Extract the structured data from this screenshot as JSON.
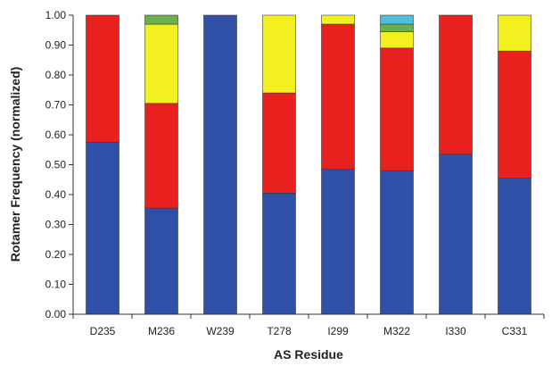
{
  "chart_data": {
    "type": "bar",
    "stacked": true,
    "title": "",
    "xlabel": "AS Residue",
    "ylabel": "Rotamer Frequency (normalized)",
    "ylim": [
      0,
      1
    ],
    "ytick_step": 0.1,
    "grid": false,
    "legend": "none",
    "categories": [
      "D235",
      "M236",
      "W239",
      "T278",
      "I299",
      "M322",
      "I330",
      "C331"
    ],
    "yticks": [
      "0.00",
      "0.10",
      "0.20",
      "0.30",
      "0.40",
      "0.50",
      "0.60",
      "0.70",
      "0.80",
      "0.90",
      "1.00"
    ],
    "series": [
      {
        "color": "#3050a8",
        "values": [
          0.575,
          0.355,
          1.0,
          0.405,
          0.485,
          0.48,
          0.535,
          0.455
        ]
      },
      {
        "color": "#e8201e",
        "values": [
          0.425,
          0.35,
          0.0,
          0.335,
          0.485,
          0.41,
          0.465,
          0.425
        ]
      },
      {
        "color": "#f4f020",
        "values": [
          0.0,
          0.265,
          0.0,
          0.26,
          0.03,
          0.055,
          0.0,
          0.12
        ]
      },
      {
        "color": "#6ab04c",
        "values": [
          0.0,
          0.03,
          0.0,
          0.0,
          0.0,
          0.025,
          0.0,
          0.0
        ]
      },
      {
        "color": "#4fc0d8",
        "values": [
          0.0,
          0.0,
          0.0,
          0.0,
          0.0,
          0.03,
          0.0,
          0.0
        ]
      }
    ]
  }
}
